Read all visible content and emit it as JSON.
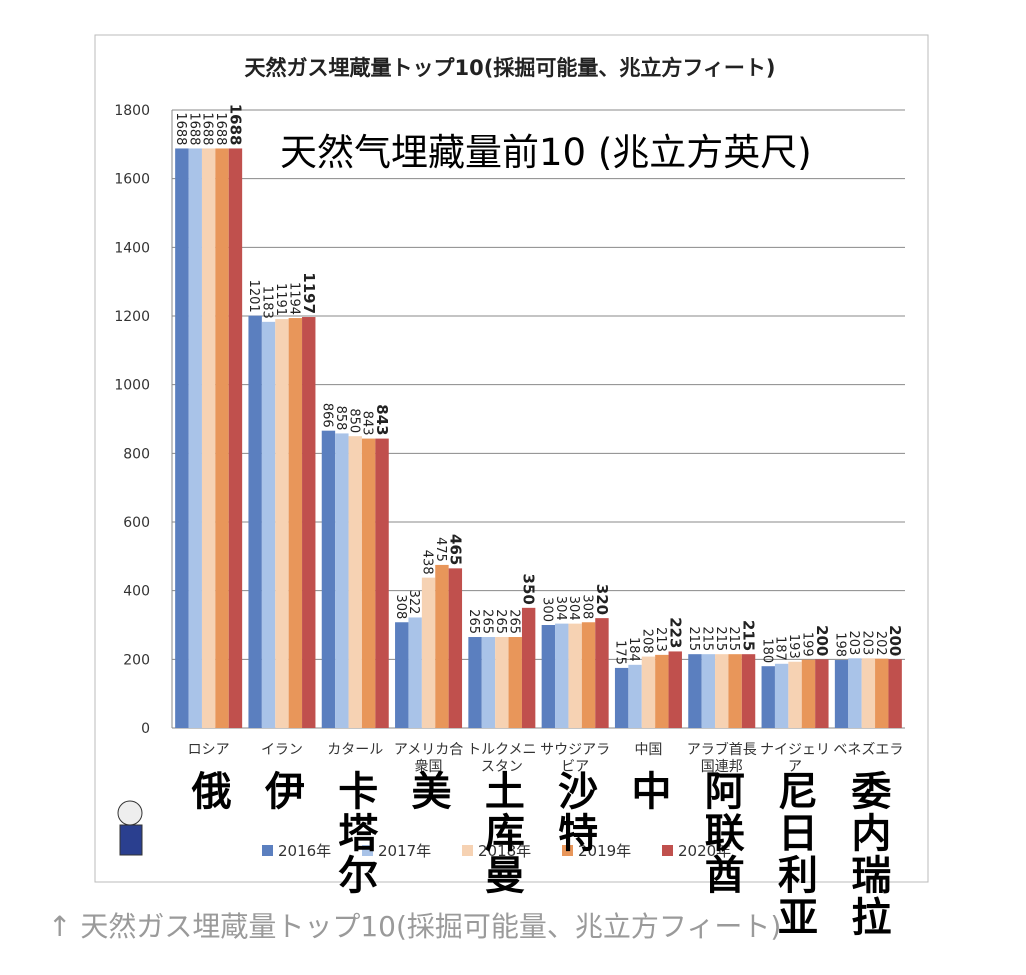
{
  "chart_data": {
    "type": "bar",
    "title": "天然ガス埋蔵量トップ10(採掘可能量、兆立方フィート)",
    "categories": [
      "ロシア",
      "イラン",
      "カタール",
      "アメリカ合衆国",
      "トルクメニスタン",
      "サウジアラビア",
      "中国",
      "アラブ首長国連邦",
      "ナイジェリア",
      "ベネズエラ"
    ],
    "series": [
      {
        "name": "2016年",
        "color": "#5b7fbf",
        "values": [
          1688,
          1201,
          866,
          308,
          265,
          300,
          175,
          215,
          180,
          198
        ]
      },
      {
        "name": "2017年",
        "color": "#a9c3e8",
        "values": [
          1688,
          1183,
          858,
          322,
          265,
          304,
          184,
          215,
          187,
          203
        ]
      },
      {
        "name": "2018年",
        "color": "#f6d2b3",
        "values": [
          1688,
          1191,
          850,
          438,
          265,
          304,
          208,
          215,
          193,
          203
        ]
      },
      {
        "name": "2019年",
        "color": "#e8965a",
        "values": [
          1688,
          1194,
          843,
          475,
          265,
          308,
          213,
          215,
          199,
          202
        ]
      },
      {
        "name": "2020年",
        "color": "#c0504d",
        "values": [
          1688,
          1197,
          843,
          465,
          350,
          320,
          223,
          215,
          200,
          200
        ]
      }
    ],
    "ylim": [
      0,
      1800
    ],
    "yticks": [
      0,
      200,
      400,
      600,
      800,
      1000,
      1200,
      1400,
      1600,
      1800
    ],
    "grid": true
  },
  "overlay": {
    "title": "天然气埋藏量前10 (兆立方英尺)",
    "labels": [
      "俄",
      "伊",
      "卡塔尔",
      "美",
      "土库曼",
      "沙特",
      "中",
      "阿联酋",
      "尼日利亚",
      "委内瑞拉"
    ]
  },
  "caption": "↑ 天然ガス埋蔵量トップ10(採掘可能量、兆立方フィート)"
}
